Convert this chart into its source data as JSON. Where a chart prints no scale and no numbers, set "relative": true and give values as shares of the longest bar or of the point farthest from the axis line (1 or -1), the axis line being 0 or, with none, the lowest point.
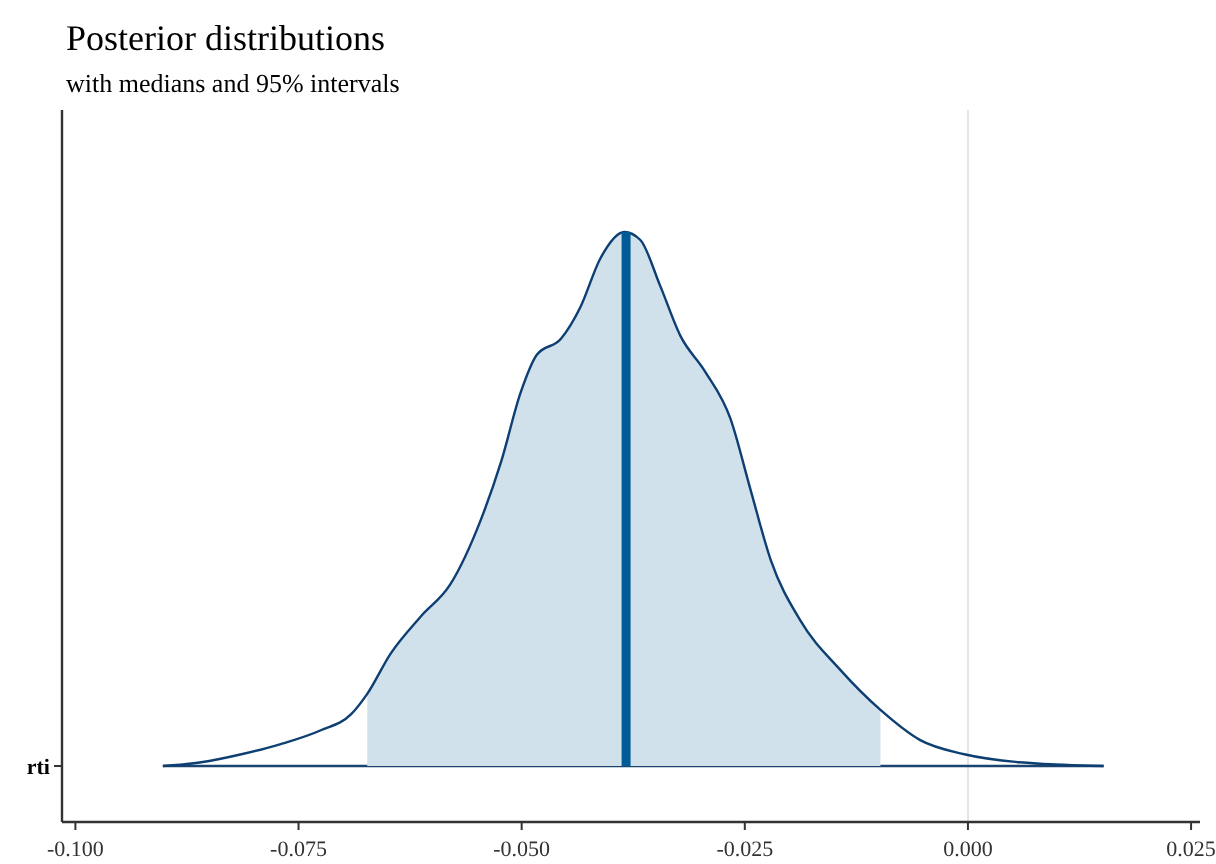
{
  "chart_data": {
    "type": "area",
    "title": "Posterior distributions",
    "subtitle": "with medians and 95% intervals",
    "relative": true,
    "xlim": [
      -0.1015,
      0.026
    ],
    "xticks": [
      {
        "value": -0.1,
        "label": "-0.100"
      },
      {
        "value": -0.075,
        "label": "-0.075"
      },
      {
        "value": -0.05,
        "label": "-0.050"
      },
      {
        "value": -0.025,
        "label": "-0.025"
      },
      {
        "value": 0,
        "label": "0.000"
      },
      {
        "value": 0.025,
        "label": "0.025"
      }
    ],
    "ref_lines": [
      {
        "axis": "x",
        "value": 0,
        "label": null,
        "color": "#e5e5e5"
      },
      {
        "axis": "y",
        "value": 0,
        "label": null,
        "color": "#1c4470"
      }
    ],
    "grid": false,
    "annotations": [
      "rti"
    ],
    "series": [
      {
        "type": "line",
        "color": "#0d3f73",
        "x": [
          -0.0902,
          -0.0859,
          -0.0814,
          -0.077,
          -0.0725,
          -0.0691,
          -0.0673,
          -0.0647,
          -0.0613,
          -0.058,
          -0.0546,
          -0.0523,
          -0.0501,
          -0.0483,
          -0.0456,
          -0.0434,
          -0.0412,
          -0.0385,
          -0.0367,
          -0.0345,
          -0.0322,
          -0.0295,
          -0.0266,
          -0.0244,
          -0.0221,
          -0.0188,
          -0.0143,
          -0.0098,
          -0.0054,
          -0.0004,
          0.0058,
          0.0152
        ],
        "values": [
          0,
          0.007,
          0.022,
          0.041,
          0.067,
          0.097,
          0.135,
          0.21,
          0.28,
          0.34,
          0.46,
          0.57,
          0.7,
          0.77,
          0.8,
          0.86,
          0.95,
          1,
          0.985,
          0.9,
          0.805,
          0.74,
          0.65,
          0.52,
          0.386,
          0.273,
          0.18,
          0.105,
          0.049,
          0.022,
          0.007,
          0
        ]
      },
      {
        "type": "area",
        "color": "#d1e1ec",
        "x": [
          -0.0673,
          -0.0647,
          -0.0613,
          -0.058,
          -0.0546,
          -0.0523,
          -0.0501,
          -0.0483,
          -0.0456,
          -0.0434,
          -0.0412,
          -0.0385,
          -0.0367,
          -0.0345,
          -0.0322,
          -0.0295,
          -0.0266,
          -0.0244,
          -0.0221,
          -0.0188,
          -0.0143,
          -0.0098
        ],
        "values": [
          0.135,
          0.21,
          0.28,
          0.34,
          0.46,
          0.57,
          0.7,
          0.77,
          0.8,
          0.86,
          0.95,
          1,
          0.985,
          0.9,
          0.805,
          0.74,
          0.65,
          0.52,
          0.386,
          0.273,
          0.18,
          0.105
        ]
      },
      {
        "type": "line",
        "color": "#005b96",
        "x": [
          -0.0383,
          -0.0383
        ],
        "values": [
          0,
          1
        ]
      }
    ]
  }
}
